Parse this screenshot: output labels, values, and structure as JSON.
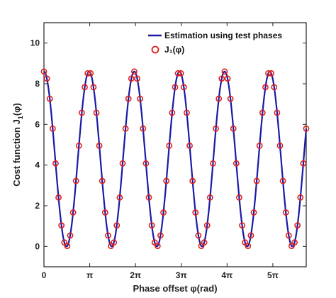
{
  "chart_data": {
    "type": "line",
    "title": "",
    "xlabel": "Phase offset φ(rad)",
    "ylabel_main": "Cost function J",
    "ylabel_sub": "1",
    "ylabel_tail": "(φ)",
    "xlim": [
      0,
      18.0
    ],
    "ylim": [
      -1,
      11
    ],
    "xticks": [
      0,
      3.1416,
      6.2832,
      9.4248,
      12.5664,
      15.708
    ],
    "xtick_labels": [
      "0",
      "π",
      "2π",
      "3π",
      "4π",
      "5π"
    ],
    "yticks": [
      0,
      2,
      4,
      6,
      8,
      10
    ],
    "ytick_labels": [
      "0",
      "2",
      "4",
      "6",
      "8",
      "10"
    ],
    "grid": false,
    "legend": {
      "placement": "top-right",
      "items": [
        "Estimation using test phases",
        "J₁(φ)"
      ]
    },
    "series": [
      {
        "name": "Estimation using test phases",
        "kind": "line",
        "color": "#1a1aa6",
        "model": {
          "offset": 4.3,
          "amplitude": 4.3,
          "period": 3.1,
          "phase": 0.0
        }
      },
      {
        "name": "J₁(φ)",
        "kind": "markers",
        "color": "#e0201a",
        "x_step": 0.2,
        "model": {
          "offset": 4.3,
          "amplitude": 4.3,
          "period": 3.1,
          "phase": 0.0
        }
      }
    ]
  }
}
